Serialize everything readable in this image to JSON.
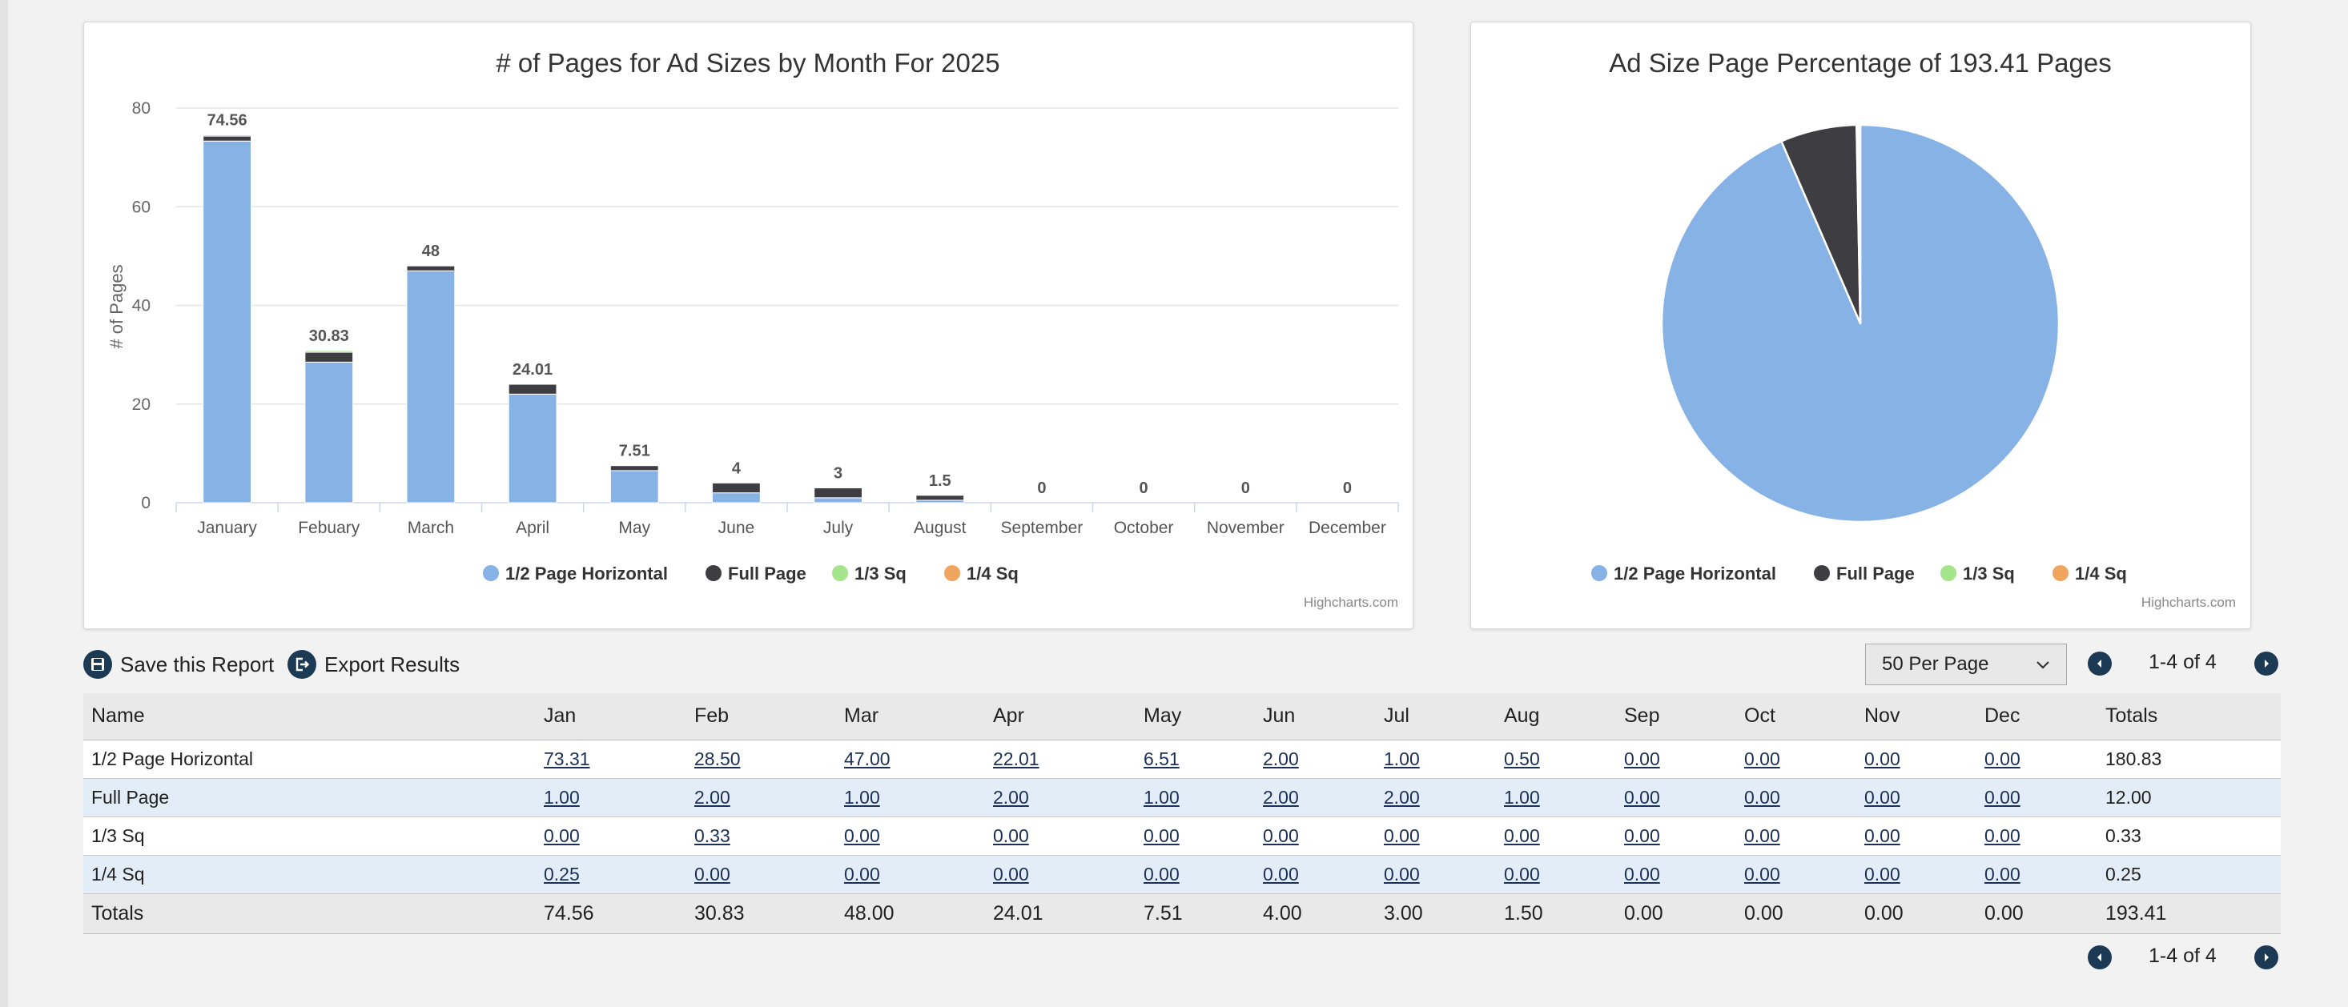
{
  "bar_chart": {
    "title": "# of Pages for Ad Sizes by Month For 2025",
    "credit": "Highcharts.com"
  },
  "pie_chart": {
    "title": "Ad Size Page Percentage of 193.41 Pages",
    "credit": "Highcharts.com"
  },
  "chart_data": [
    {
      "type": "bar",
      "stacked": true,
      "title": "# of Pages for Ad Sizes by Month For 2025",
      "xlabel": "",
      "ylabel": "# of Pages",
      "ylim": [
        0,
        80
      ],
      "yticks": [
        "0",
        "20",
        "40",
        "60",
        "80"
      ],
      "categories": [
        "January",
        "Febuary",
        "March",
        "April",
        "May",
        "June",
        "July",
        "August",
        "September",
        "October",
        "November",
        "December"
      ],
      "series": [
        {
          "name": "1/2 Page Horizontal",
          "color": "#87b2e6",
          "values": [
            73.31,
            28.5,
            47.0,
            22.01,
            6.51,
            2.0,
            1.0,
            0.5,
            0,
            0,
            0,
            0
          ]
        },
        {
          "name": "Full Page",
          "color": "#3d3d42",
          "values": [
            1.0,
            2.0,
            1.0,
            2.0,
            1.0,
            2.0,
            2.0,
            1.0,
            0,
            0,
            0,
            0
          ]
        },
        {
          "name": "1/3 Sq",
          "color": "#a4e48a",
          "values": [
            0,
            0.33,
            0,
            0,
            0,
            0,
            0,
            0,
            0,
            0,
            0,
            0
          ]
        },
        {
          "name": "1/4 Sq",
          "color": "#f0a55e",
          "values": [
            0.25,
            0,
            0,
            0,
            0,
            0,
            0,
            0,
            0,
            0,
            0,
            0
          ]
        }
      ],
      "data_labels": [
        "74.56",
        "30.83",
        "48",
        "24.01",
        "7.51",
        "4",
        "3",
        "1.5",
        "0",
        "0",
        "0",
        "0"
      ],
      "legend": "bottom-center"
    },
    {
      "type": "pie",
      "title": "Ad Size Page Percentage of 193.41 Pages",
      "slices": [
        {
          "name": "1/2 Page Horizontal",
          "value": 180.83,
          "color": "#87b2e6"
        },
        {
          "name": "Full Page",
          "value": 12.0,
          "color": "#3d3d42"
        },
        {
          "name": "1/3 Sq",
          "value": 0.33,
          "color": "#a4e48a"
        },
        {
          "name": "1/4 Sq",
          "value": 0.25,
          "color": "#f0a55e"
        }
      ],
      "legend": "bottom-center"
    }
  ],
  "toolbar": {
    "save_label": "Save this Report",
    "export_label": "Export Results",
    "per_page": "50 Per Page",
    "range_top": "1-4 of 4",
    "range_bottom": "1-4 of 4"
  },
  "table": {
    "headers": [
      "Name",
      "Jan",
      "Feb",
      "Mar",
      "Apr",
      "May",
      "Jun",
      "Jul",
      "Aug",
      "Sep",
      "Oct",
      "Nov",
      "Dec",
      "Totals"
    ],
    "rows": [
      {
        "name": "1/2 Page Horizontal",
        "cells": [
          "73.31",
          "28.50",
          "47.00",
          "22.01",
          "6.51",
          "2.00",
          "1.00",
          "0.50",
          "0.00",
          "0.00",
          "0.00",
          "0.00"
        ],
        "total": "180.83"
      },
      {
        "name": "Full Page",
        "cells": [
          "1.00",
          "2.00",
          "1.00",
          "2.00",
          "1.00",
          "2.00",
          "2.00",
          "1.00",
          "0.00",
          "0.00",
          "0.00",
          "0.00"
        ],
        "total": "12.00"
      },
      {
        "name": "1/3 Sq",
        "cells": [
          "0.00",
          "0.33",
          "0.00",
          "0.00",
          "0.00",
          "0.00",
          "0.00",
          "0.00",
          "0.00",
          "0.00",
          "0.00",
          "0.00"
        ],
        "total": "0.33"
      },
      {
        "name": "1/4 Sq",
        "cells": [
          "0.25",
          "0.00",
          "0.00",
          "0.00",
          "0.00",
          "0.00",
          "0.00",
          "0.00",
          "0.00",
          "0.00",
          "0.00",
          "0.00"
        ],
        "total": "0.25"
      }
    ],
    "totals": [
      "Totals",
      "74.56",
      "30.83",
      "48.00",
      "24.01",
      "7.51",
      "4.00",
      "3.00",
      "1.50",
      "0.00",
      "0.00",
      "0.00",
      "0.00",
      "193.41"
    ]
  },
  "icons": {
    "save": "save-icon",
    "export": "export-icon",
    "prev": "prev-page-icon",
    "next": "next-page-icon",
    "dropdown": "chevron-down-icon"
  }
}
